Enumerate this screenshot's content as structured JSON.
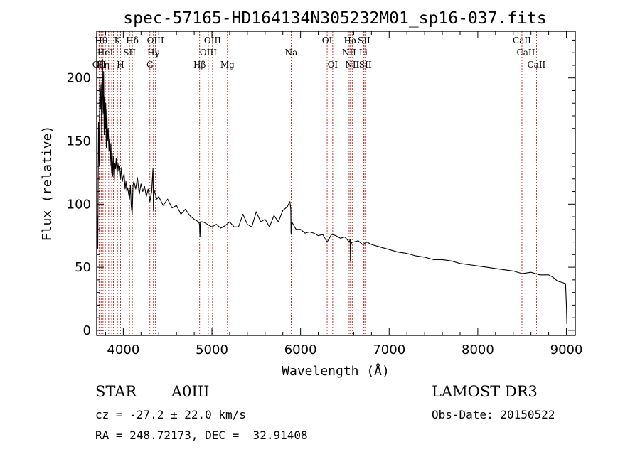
{
  "chart_data": {
    "type": "line",
    "title": "spec-57165-HD164134N305232M01_sp16-037.fits",
    "xlabel": "Wavelength (Å)",
    "ylabel": "Flux (relative)",
    "xlim": [
      3700,
      9100
    ],
    "ylim": [
      -4,
      237
    ],
    "xticks": [
      4000,
      5000,
      6000,
      7000,
      8000,
      9000
    ],
    "yticks": [
      0,
      50,
      100,
      150,
      200
    ],
    "grid": false,
    "series": [
      {
        "name": "flux",
        "x": [
          3700,
          3705,
          3712,
          3720,
          3728,
          3735,
          3742,
          3750,
          3757,
          3765,
          3772,
          3778,
          3784,
          3790,
          3796,
          3802,
          3808,
          3815,
          3822,
          3830,
          3838,
          3845,
          3852,
          3860,
          3868,
          3875,
          3882,
          3890,
          3898,
          3905,
          3912,
          3920,
          3930,
          3940,
          3950,
          3960,
          3970,
          3980,
          3990,
          4000,
          4010,
          4020,
          4030,
          4040,
          4050,
          4060,
          4070,
          4080,
          4090,
          4100,
          4110,
          4120,
          4140,
          4160,
          4180,
          4200,
          4220,
          4240,
          4260,
          4280,
          4300,
          4320,
          4335,
          4340,
          4345,
          4360,
          4380,
          4400,
          4450,
          4500,
          4550,
          4600,
          4650,
          4700,
          4750,
          4800,
          4850,
          4860,
          4865,
          4870,
          4900,
          4950,
          5000,
          5050,
          5100,
          5150,
          5200,
          5250,
          5300,
          5350,
          5400,
          5450,
          5500,
          5550,
          5600,
          5650,
          5700,
          5750,
          5800,
          5850,
          5880,
          5890,
          5893,
          5900,
          5950,
          6000,
          6050,
          6100,
          6150,
          6200,
          6250,
          6300,
          6350,
          6400,
          6450,
          6500,
          6550,
          6560,
          6563,
          6566,
          6580,
          6600,
          6650,
          6700,
          6750,
          6800,
          6900,
          7000,
          7100,
          7200,
          7300,
          7400,
          7500,
          7600,
          7700,
          7800,
          7900,
          8000,
          8100,
          8200,
          8300,
          8400,
          8500,
          8600,
          8700,
          8800,
          8850,
          8900,
          8950,
          8990,
          9000,
          9005
        ],
        "values": [
          20,
          90,
          65,
          165,
          130,
          200,
          175,
          195,
          150,
          215,
          172,
          205,
          155,
          185,
          160,
          180,
          145,
          175,
          150,
          160,
          142,
          152,
          130,
          148,
          125,
          140,
          122,
          138,
          118,
          132,
          128,
          136,
          124,
          132,
          126,
          130,
          120,
          129,
          118,
          122,
          124,
          112,
          118,
          110,
          113,
          108,
          104,
          115,
          98,
          92,
          115,
          118,
          112,
          121,
          108,
          116,
          110,
          114,
          106,
          112,
          102,
          110,
          128,
          95,
          112,
          108,
          104,
          106,
          99,
          104,
          97,
          99,
          92,
          96,
          91,
          88,
          86,
          84,
          74,
          86,
          86,
          84,
          82,
          84,
          81,
          83,
          86,
          82,
          82,
          92,
          84,
          82,
          94,
          86,
          88,
          82,
          91,
          86,
          95,
          98,
          102,
          96,
          76,
          86,
          80,
          80,
          77,
          78,
          77,
          75,
          76,
          70,
          76,
          75,
          73,
          74,
          70,
          72,
          55,
          68,
          70,
          70,
          71,
          68,
          70,
          68,
          66,
          64,
          62,
          61,
          59,
          58,
          56,
          56,
          55,
          53,
          52,
          51,
          50,
          49,
          48,
          47,
          45,
          46,
          44,
          44,
          42,
          39,
          38,
          37,
          20,
          5
        ],
        "color": "#000000"
      }
    ],
    "spectral_lines": [
      {
        "wl": 3727,
        "label": "OII",
        "row": 3
      },
      {
        "wl": 3750,
        "label": "Hθ",
        "row": 1
      },
      {
        "wl": 3771,
        "label": "Hη",
        "row": 3
      },
      {
        "wl": 3797,
        "label": "HeI",
        "row": 2
      },
      {
        "wl": 3835,
        "label": "",
        "row": 0
      },
      {
        "wl": 3869,
        "label": "",
        "row": 0
      },
      {
        "wl": 3889,
        "label": "",
        "row": 0
      },
      {
        "wl": 3934,
        "label": "K",
        "row": 1
      },
      {
        "wl": 3969,
        "label": "H",
        "row": 3
      },
      {
        "wl": 4070,
        "label": "SII",
        "row": 2
      },
      {
        "wl": 4102,
        "label": "Hδ",
        "row": 1
      },
      {
        "wl": 4300,
        "label": "G",
        "row": 3
      },
      {
        "wl": 4340,
        "label": "Hγ",
        "row": 2
      },
      {
        "wl": 4363,
        "label": "OIII",
        "row": 1
      },
      {
        "wl": 4861,
        "label": "Hβ",
        "row": 3
      },
      {
        "wl": 4959,
        "label": "OIII",
        "row": 2
      },
      {
        "wl": 5007,
        "label": "OIII",
        "row": 1
      },
      {
        "wl": 5175,
        "label": "Mg",
        "row": 3
      },
      {
        "wl": 5894,
        "label": "Na",
        "row": 2
      },
      {
        "wl": 6300,
        "label": "OI",
        "row": 1
      },
      {
        "wl": 6363,
        "label": "OI",
        "row": 3
      },
      {
        "wl": 6548,
        "label": "NII",
        "row": 2
      },
      {
        "wl": 6563,
        "label": "Hα",
        "row": 1
      },
      {
        "wl": 6583,
        "label": "NII",
        "row": 3
      },
      {
        "wl": 6708,
        "label": "Li",
        "row": 2
      },
      {
        "wl": 6716,
        "label": "SII",
        "row": 1
      },
      {
        "wl": 6731,
        "label": "SII",
        "row": 3
      },
      {
        "wl": 8498,
        "label": "CaII",
        "row": 1
      },
      {
        "wl": 8542,
        "label": "CaII",
        "row": 2
      },
      {
        "wl": 8662,
        "label": "CaII",
        "row": 3
      }
    ]
  },
  "info": {
    "object_class": "STAR",
    "subclass": "A0III",
    "survey": "LAMOST DR3",
    "redshift": "cz = -27.2 ± 22.0 km/s",
    "obs_date": "Obs-Date: 20150522",
    "coords": "RA = 248.72173, DEC =  32.91408"
  }
}
